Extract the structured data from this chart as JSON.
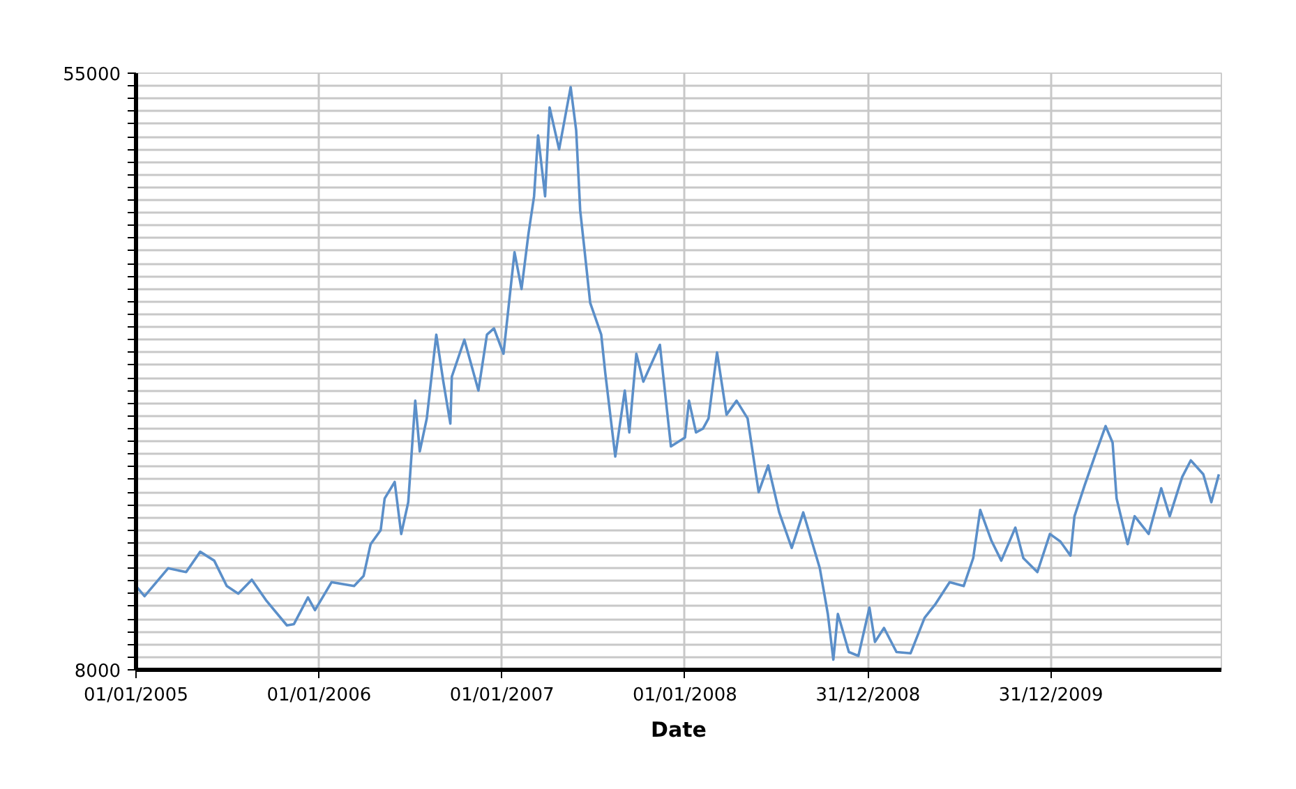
{
  "chart_data": {
    "type": "line",
    "xlabel": "Date",
    "x": [
      "2005-01-01",
      "2005-01-18",
      "2005-03-06",
      "2005-04-11",
      "2005-05-09",
      "2005-06-06",
      "2005-07-01",
      "2005-07-24",
      "2005-08-20",
      "2005-09-17",
      "2005-10-29",
      "2005-11-12",
      "2005-12-10",
      "2005-12-24",
      "2006-01-26",
      "2006-03-12",
      "2006-03-31",
      "2006-04-14",
      "2006-05-04",
      "2006-05-12",
      "2006-06-01",
      "2006-06-14",
      "2006-06-28",
      "2006-07-12",
      "2006-07-21",
      "2006-08-04",
      "2006-08-23",
      "2006-09-06",
      "2006-09-20",
      "2006-09-23",
      "2006-10-18",
      "2006-11-15",
      "2006-12-02",
      "2006-12-16",
      "2007-01-04",
      "2007-01-12",
      "2007-01-26",
      "2007-02-09",
      "2007-02-23",
      "2007-03-06",
      "2007-03-14",
      "2007-03-28",
      "2007-04-06",
      "2007-04-25",
      "2007-05-18",
      "2007-05-29",
      "2007-06-06",
      "2007-06-14",
      "2007-06-26",
      "2007-07-18",
      "2007-07-26",
      "2007-08-15",
      "2007-09-03",
      "2007-09-12",
      "2007-09-26",
      "2007-10-10",
      "2007-11-12",
      "2007-11-26",
      "2007-12-04",
      "2008-01-01",
      "2008-01-09",
      "2008-01-23",
      "2008-02-06",
      "2008-02-17",
      "2008-03-05",
      "2008-03-24",
      "2008-04-13",
      "2008-05-05",
      "2008-05-27",
      "2008-06-15",
      "2008-07-07",
      "2008-08-01",
      "2008-08-24",
      "2008-09-26",
      "2008-10-12",
      "2008-10-23",
      "2008-11-01",
      "2008-11-23",
      "2008-12-12",
      "2009-01-03",
      "2009-01-14",
      "2009-02-01",
      "2009-02-26",
      "2009-03-26",
      "2009-04-23",
      "2009-05-15",
      "2009-06-12",
      "2009-07-10",
      "2009-07-29",
      "2009-08-12",
      "2009-09-03",
      "2009-09-23",
      "2009-10-21",
      "2009-11-06",
      "2009-12-04",
      "2009-12-29",
      "2010-01-19",
      "2010-02-08",
      "2010-02-16",
      "2010-03-08",
      "2010-03-30",
      "2010-04-19",
      "2010-05-03",
      "2010-05-11",
      "2010-06-02",
      "2010-06-16",
      "2010-07-14",
      "2010-08-08",
      "2010-08-25",
      "2010-09-19",
      "2010-10-06",
      "2010-10-31",
      "2010-11-16",
      "2010-12-01"
    ],
    "series": [
      {
        "color": "#5b8fc9",
        "values": [
          14600,
          13800,
          16000,
          15700,
          17300,
          16600,
          14600,
          14000,
          15100,
          13500,
          11500,
          11600,
          13700,
          12700,
          14900,
          14600,
          15400,
          17900,
          19000,
          21500,
          22800,
          18700,
          21200,
          29200,
          25200,
          27800,
          34400,
          30700,
          27400,
          31100,
          34000,
          30000,
          34400,
          34900,
          32900,
          35800,
          40900,
          38000,
          42400,
          45300,
          50100,
          45300,
          52300,
          49000,
          53900,
          50500,
          44200,
          41300,
          36900,
          34400,
          31400,
          24800,
          30000,
          26700,
          32900,
          30700,
          33600,
          28500,
          25600,
          26300,
          29200,
          26700,
          27000,
          27800,
          33000,
          28100,
          29200,
          27800,
          22000,
          24100,
          20400,
          17600,
          20400,
          16000,
          12400,
          8800,
          12400,
          9400,
          9100,
          12900,
          10200,
          11300,
          9400,
          9300,
          12100,
          13200,
          14900,
          14600,
          16800,
          20600,
          18200,
          16600,
          19200,
          16800,
          15700,
          18700,
          18100,
          17000,
          20100,
          22500,
          25000,
          27200,
          25900,
          21500,
          17900,
          20100,
          18700,
          22300,
          20100,
          23200,
          24500,
          23400,
          21200,
          23400
        ]
      }
    ],
    "xlim": [
      "2005-01-01",
      "2010-12-06"
    ],
    "xticks": [
      {
        "value": "2005-01-01",
        "label": "01/01/2005"
      },
      {
        "value": "2006-01-01",
        "label": "01/01/2006"
      },
      {
        "value": "2007-01-01",
        "label": "01/01/2007"
      },
      {
        "value": "2008-01-01",
        "label": "01/01/2008"
      },
      {
        "value": "2008-12-31",
        "label": "31/12/2008"
      },
      {
        "value": "2009-12-31",
        "label": "31/12/2009"
      }
    ],
    "ylim": [
      8000,
      55000
    ],
    "yticks": [
      8000,
      {
        "value": 9000,
        "label": null
      },
      {
        "value": 10000,
        "label": null
      },
      {
        "value": 11000,
        "label": null
      },
      {
        "value": 12000,
        "label": null
      },
      {
        "value": 13000,
        "label": null
      },
      {
        "value": 14000,
        "label": null
      },
      {
        "value": 15000,
        "label": null
      },
      {
        "value": 16000,
        "label": null
      },
      {
        "value": 17000,
        "label": null
      },
      {
        "value": 18000,
        "label": null
      },
      {
        "value": 19000,
        "label": null
      },
      {
        "value": 20000,
        "label": null
      },
      {
        "value": 21000,
        "label": null
      },
      {
        "value": 22000,
        "label": null
      },
      {
        "value": 23000,
        "label": null
      },
      {
        "value": 24000,
        "label": null
      },
      {
        "value": 25000,
        "label": null
      },
      {
        "value": 26000,
        "label": null
      },
      {
        "value": 27000,
        "label": null
      },
      {
        "value": 28000,
        "label": null
      },
      {
        "value": 29000,
        "label": null
      },
      {
        "value": 30000,
        "label": null
      },
      {
        "value": 31000,
        "label": null
      },
      {
        "value": 32000,
        "label": null
      },
      {
        "value": 33000,
        "label": null
      },
      {
        "value": 34000,
        "label": null
      },
      {
        "value": 35000,
        "label": null
      },
      {
        "value": 36000,
        "label": null
      },
      {
        "value": 37000,
        "label": null
      },
      {
        "value": 38000,
        "label": null
      },
      {
        "value": 39000,
        "label": null
      },
      {
        "value": 40000,
        "label": null
      },
      {
        "value": 41000,
        "label": null
      },
      {
        "value": 42000,
        "label": null
      },
      {
        "value": 43000,
        "label": null
      },
      {
        "value": 44000,
        "label": null
      },
      {
        "value": 45000,
        "label": null
      },
      {
        "value": 46000,
        "label": null
      },
      {
        "value": 47000,
        "label": null
      },
      {
        "value": 48000,
        "label": null
      },
      {
        "value": 49000,
        "label": null
      },
      {
        "value": 50000,
        "label": null
      },
      {
        "value": 51000,
        "label": null
      },
      {
        "value": 52000,
        "label": null
      },
      {
        "value": 53000,
        "label": null
      },
      {
        "value": 54000,
        "label": null
      },
      55000
    ],
    "grid": true
  }
}
